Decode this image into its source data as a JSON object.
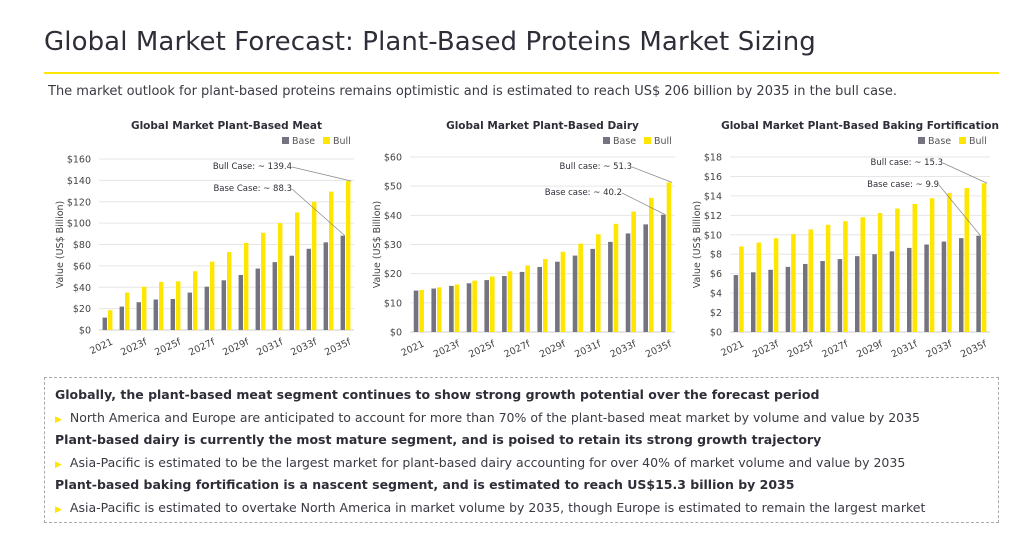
{
  "header": {
    "title": "Global Market Forecast: Plant-Based Proteins Market Sizing",
    "subtitle": "The market outlook for plant-based proteins remains optimistic and is estimated to reach US$ 206 billion by 2035 in the bull case."
  },
  "colors": {
    "base": "#747480",
    "bull": "#ffe600",
    "accent": "#ffe600"
  },
  "chart_data": [
    {
      "type": "bar",
      "title": "Global Market Plant-Based Meat",
      "ylabel": "Value (US$ Billion)",
      "xlabel": "",
      "categories": [
        "2021",
        "2022f",
        "2023f",
        "2024f",
        "2025f",
        "2026f",
        "2027f",
        "2028f",
        "2029f",
        "2030f",
        "2031f",
        "2032f",
        "2033f",
        "2034f",
        "2035f"
      ],
      "tick_labels": [
        "2021",
        "2023f",
        "2025f",
        "2027f",
        "2029f",
        "2031f",
        "2033f",
        "2035f"
      ],
      "yticks": [
        "$0",
        "$20",
        "$40",
        "$60",
        "$80",
        "$100",
        "$120",
        "$140",
        "$160"
      ],
      "ylim": [
        0,
        160
      ],
      "ystep": 20,
      "grid": true,
      "legend": "top-right",
      "series": [
        {
          "name": "Base",
          "values": [
            11.6,
            21.9,
            26,
            28.5,
            29,
            35,
            40.5,
            46.5,
            51.5,
            57.5,
            63.5,
            69.5,
            76,
            82,
            88.3
          ]
        },
        {
          "name": "Bull",
          "values": [
            18.5,
            35,
            40.5,
            45,
            45.5,
            55,
            64,
            73,
            81.5,
            91,
            100,
            110,
            120,
            129.5,
            139.4
          ]
        }
      ],
      "annotations": [
        {
          "text": "Bull Case: ~ 139.4",
          "series": "Bull",
          "category": "2035f"
        },
        {
          "text": "Base Case: ~ 88.3",
          "series": "Base",
          "category": "2035f"
        }
      ]
    },
    {
      "type": "bar",
      "title": "Global Market Plant-Based Dairy",
      "ylabel": "Value (US$ Billion)",
      "xlabel": "",
      "categories": [
        "2021",
        "2022f",
        "2023f",
        "2024f",
        "2025f",
        "2026f",
        "2027f",
        "2028f",
        "2029f",
        "2030f",
        "2031f",
        "2032f",
        "2033f",
        "2034f",
        "2035f"
      ],
      "tick_labels": [
        "2021",
        "2023f",
        "2025f",
        "2027f",
        "2029f",
        "2031f",
        "2033f",
        "2035f"
      ],
      "yticks": [
        "$0",
        "$10",
        "$20",
        "$30",
        "$40",
        "$50",
        "$60"
      ],
      "ylim": [
        0,
        60
      ],
      "ystep": 10,
      "grid": true,
      "legend": "top-right",
      "series": [
        {
          "name": "Base",
          "values": [
            14.2,
            14.9,
            15.8,
            16.7,
            17.8,
            19.2,
            20.6,
            22.3,
            24.1,
            26.2,
            28.5,
            30.9,
            33.8,
            36.9,
            40.2
          ]
        },
        {
          "name": "Bull",
          "values": [
            14.4,
            15.3,
            16.3,
            17.6,
            19.0,
            20.8,
            22.8,
            25.0,
            27.5,
            30.3,
            33.5,
            37.1,
            41.3,
            46.0,
            51.3
          ]
        }
      ],
      "annotations": [
        {
          "text": "Bull case: ~ 51.3",
          "series": "Bull",
          "category": "2035f"
        },
        {
          "text": "Base case: ~ 40.2",
          "series": "Base",
          "category": "2035f"
        }
      ]
    },
    {
      "type": "bar",
      "title": "Global Market Plant-Based Baking Fortification",
      "ylabel": "Value (US$ Billion)",
      "xlabel": "",
      "categories": [
        "2021",
        "2022f",
        "2023f",
        "2024f",
        "2025f",
        "2026f",
        "2027f",
        "2028f",
        "2029f",
        "2030f",
        "2031f",
        "2032f",
        "2033f",
        "2034f",
        "2035f"
      ],
      "tick_labels": [
        "2021",
        "2023f",
        "2025f",
        "2027f",
        "2029f",
        "2031f",
        "2033f",
        "2035f"
      ],
      "yticks": [
        "$0",
        "$2",
        "$4",
        "$6",
        "$8",
        "$10",
        "$12",
        "$14",
        "$16",
        "$18"
      ],
      "ylim": [
        0,
        18
      ],
      "ystep": 2,
      "grid": true,
      "legend": "top-right",
      "series": [
        {
          "name": "Base",
          "values": [
            5.86,
            6.14,
            6.4,
            6.7,
            7.0,
            7.3,
            7.5,
            7.8,
            8.0,
            8.3,
            8.65,
            9.0,
            9.3,
            9.65,
            9.9
          ]
        },
        {
          "name": "Bull",
          "values": [
            8.8,
            9.2,
            9.65,
            10.07,
            10.55,
            11.03,
            11.4,
            11.8,
            12.24,
            12.7,
            13.17,
            13.76,
            14.3,
            14.8,
            15.3
          ]
        }
      ],
      "annotations": [
        {
          "text": "Bull case: ~ 15.3",
          "series": "Bull",
          "category": "2035f"
        },
        {
          "text": "Base case: ~ 9.9",
          "series": "Base",
          "category": "2035f"
        }
      ]
    }
  ],
  "insights": [
    {
      "heading": "Globally, the plant-based meat segment continues to show strong growth potential over the forecast period",
      "bullet": "North America and Europe are anticipated to account for more than 70% of the plant-based meat market by volume and value by 2035"
    },
    {
      "heading": "Plant-based dairy is currently the most mature segment, and is poised to retain its strong growth trajectory",
      "bullet": "Asia-Pacific is estimated to be the largest market for plant-based dairy accounting for over 40% of market volume and value by 2035"
    },
    {
      "heading": "Plant-based baking fortification is a nascent segment, and is estimated to reach US$15.3 billion by 2035",
      "bullet": "Asia-Pacific is estimated to overtake North America in market volume by 2035, though Europe is estimated to remain the largest market"
    }
  ],
  "bullet_icon": "triangle-right-icon"
}
